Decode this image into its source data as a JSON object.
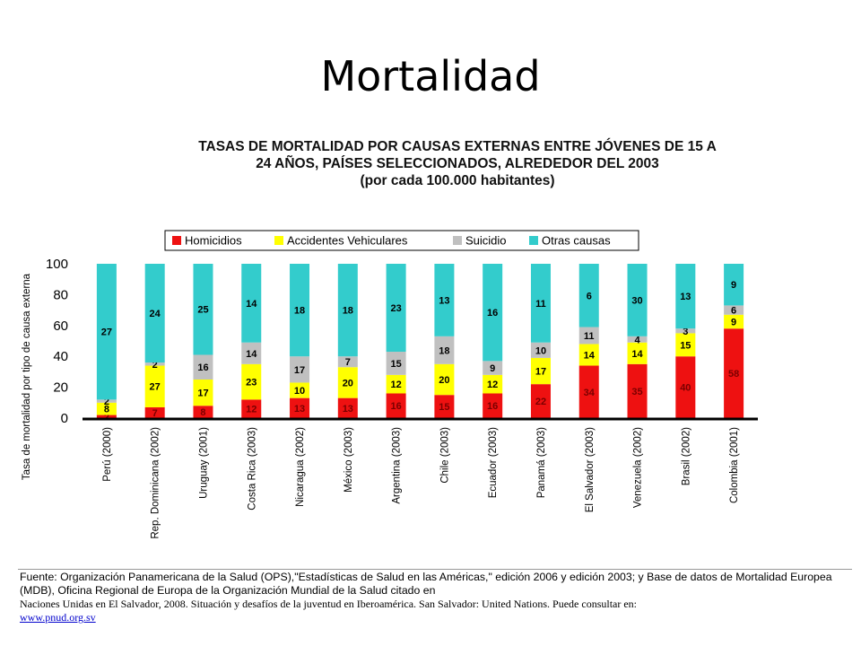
{
  "slide": {
    "title": "Mortalidad"
  },
  "source": {
    "text": "Fuente: Organización Panamericana de la Salud (OPS),\"Estadísticas de Salud en las Américas,\" edición 2006 y edición 2003; y Base de datos de Mortalidad Europea (MDB), Oficina Regional de Europa de la Organización Mundial de la Salud citado en",
    "text2": "Naciones Unidas en El Salvador, 2008. Situación y desafíos de la juventud en Iberoamérica. San Salvador: United Nations. Puede consultar en:",
    "link": "www.pnud.org.sv"
  },
  "chart_data": {
    "type": "bar",
    "stacked": true,
    "title_lines": [
      "TASAS DE MORTALIDAD POR CAUSAS EXTERNAS ENTRE JÓVENES DE 15 A",
      "24 AÑOS, PAÍSES SELECCIONADOS, ALREDEDOR DEL 2003",
      "(por cada 100.000 habitantes)"
    ],
    "ylabel": "Tasa de mortalidad por tipo de causa externa",
    "xlabel": "",
    "ylim": [
      0,
      100
    ],
    "yticks": [
      0,
      20,
      40,
      60,
      80,
      100
    ],
    "legend_position": "top",
    "categories": [
      "Perú (2000)",
      "Rep. Dominicana (2002)",
      "Uruguay (2001)",
      "Costa Rica (2003)",
      "Nicaragua (2002)",
      "México (2003)",
      "Argentina (2003)",
      "Chile (2003)",
      "Ecuador (2003)",
      "Panamá (2003)",
      "El Salvador (2003)",
      "Venezuela (2002)",
      "Brasil (2002)",
      "Colombia (2001)"
    ],
    "series": [
      {
        "name": "Homicidios",
        "color": "#ee1111",
        "values": [
          2,
          7,
          8,
          12,
          13,
          13,
          16,
          15,
          16,
          22,
          34,
          35,
          40,
          58
        ]
      },
      {
        "name": "Accidentes Vehiculares",
        "color": "#ffff00",
        "values": [
          8,
          27,
          17,
          23,
          10,
          20,
          12,
          20,
          12,
          17,
          14,
          14,
          15,
          9
        ]
      },
      {
        "name": "Suicidio",
        "color": "#c0c0c0",
        "values": [
          2,
          2,
          16,
          14,
          17,
          7,
          15,
          18,
          9,
          10,
          11,
          4,
          3,
          6
        ]
      },
      {
        "name": "Otras causas",
        "color": "#33cccc",
        "values": [
          27,
          24,
          25,
          14,
          18,
          18,
          23,
          13,
          16,
          11,
          6,
          30,
          13,
          9
        ]
      }
    ]
  }
}
